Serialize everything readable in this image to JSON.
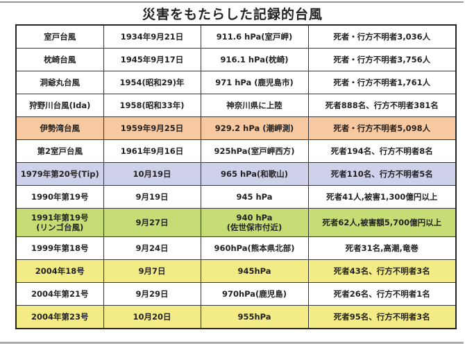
{
  "title": "災害をもたらした記録的台風",
  "colors": {
    "orange": "#f8c8a0",
    "lavender": "#cfd1ea",
    "green": "#c6dc74",
    "yellow": "#f3ec86",
    "white": "#ffffff"
  },
  "rows": [
    {
      "name": "室戸台風",
      "date": "1934年9月21日",
      "pressure": "911.6 hPa(室戸岬)",
      "damage": "死者・行方不明者3,036人",
      "color": "white"
    },
    {
      "name": "枕崎台風",
      "date": "1945年9月17日",
      "pressure": "916.1 hPa(枕崎)",
      "damage": "死者・行方不明者3,756人",
      "color": "white"
    },
    {
      "name": "洞爺丸台風",
      "date": "1954(昭和29)年",
      "pressure": "971 hPa (鹿児島市)",
      "damage": "死者・行方不明者1,761人",
      "color": "white"
    },
    {
      "name": "狩野川台風(Ida)",
      "date": "1958(昭和33年)",
      "pressure": "神奈川県に上陸",
      "damage": "死者888名、行方不明者381名",
      "color": "white"
    },
    {
      "name": "伊勢湾台風",
      "date": "1959年9月25日",
      "pressure": "929.2 hPa (潮岬測)",
      "damage": "死者・行方不明者5,098人",
      "color": "orange"
    },
    {
      "name": "第2室戸台風",
      "date": "1961年9月16日",
      "pressure": "925hPa(室戸岬西方)",
      "damage": "死者194名、行方不明者8名",
      "color": "white"
    },
    {
      "name": "1979年第20号(Tip)",
      "date": "10月19日",
      "pressure": "965 hPa(和歌山)",
      "damage": "死者110名、行方不明者5名",
      "color": "lavender"
    },
    {
      "name": "1990年第19号",
      "date": "9月19日",
      "pressure": "945 hPa",
      "damage": "死者41人,被害1,300億円以上",
      "color": "white"
    },
    {
      "name": "1991年第19号",
      "name2": "(リンゴ台風)",
      "date": "9月27日",
      "pressure": "940 hPa",
      "pressure2": "(佐世保市付近)",
      "damage": "死者62人,被害額5,700億円以上",
      "color": "green"
    },
    {
      "name": "1999年第18号",
      "date": "9月24日",
      "pressure": "960hPa(熊本県北部)",
      "damage": "死者31名,高潮,竜巻",
      "color": "white"
    },
    {
      "name": "2004年18号",
      "date": "9月7日",
      "pressure": "945hPa",
      "damage": "死者43名、行方不明者3名",
      "color": "yellow"
    },
    {
      "name": "2004年第21号",
      "date": "9月29日",
      "pressure": "970hPa(鹿児島)",
      "damage": "死者26名、行方不明者1名",
      "color": "white"
    },
    {
      "name": "2004年第23号",
      "date": "10月20日",
      "pressure": "955hPa",
      "damage": "死者95名、行方不明者3名",
      "color": "yellow"
    }
  ]
}
